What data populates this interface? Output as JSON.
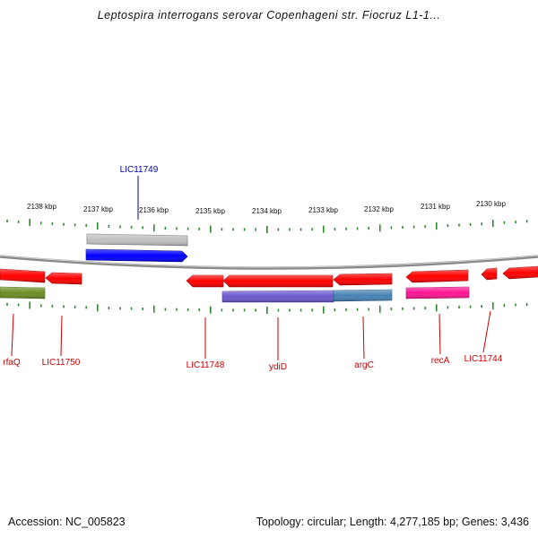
{
  "title": "Leptospira interrogans serovar Copenhageni str. Fiocruz L1-1...",
  "accession_text": "Accession: NC_005823",
  "summary_text": "Topology: circular; Length: 4,277,185 bp; Genes: 3,436",
  "colors": {
    "tick": "#2e8b2e",
    "backbone": "#8a8a8a",
    "gene_label_reverse": "#cc0000",
    "gene_label_forward": "#0000aa",
    "gene_red": "#ff0000",
    "gene_blue": "#0000ff",
    "gene_gray": "#c8c8c8",
    "gene_olive": "#6b8e23",
    "gene_purple": "#6a5acd",
    "gene_steelblue": "#4682b4",
    "gene_magenta": "#ff1493"
  },
  "kbp_labels": [
    "2138 kbp",
    "2137 kbp",
    "2136 kbp",
    "2135 kbp",
    "2134 kbp",
    "2133 kbp",
    "2132 kbp",
    "2131 kbp",
    "2130 kbp"
  ],
  "gene_labels_top": [
    "LIC11749"
  ],
  "gene_labels_bottom": [
    "rfaQ",
    "LIC11750",
    "LIC11748",
    "ydiD",
    "argC",
    "recA",
    "LIC11744"
  ]
}
